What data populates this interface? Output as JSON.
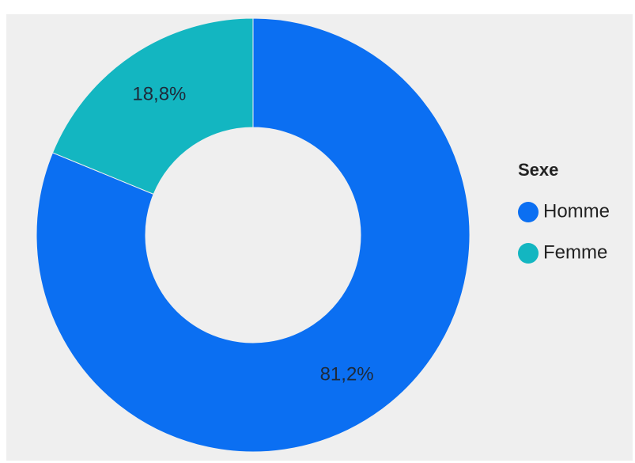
{
  "chart_data": {
    "type": "donut",
    "legend_title": "Sexe",
    "categories": [
      "Homme",
      "Femme"
    ],
    "values": [
      81.2,
      18.8
    ],
    "value_labels": [
      "81,2%",
      "18,8%"
    ],
    "colors": [
      "#0b6ff2",
      "#13b6c1"
    ],
    "legend": "right"
  }
}
